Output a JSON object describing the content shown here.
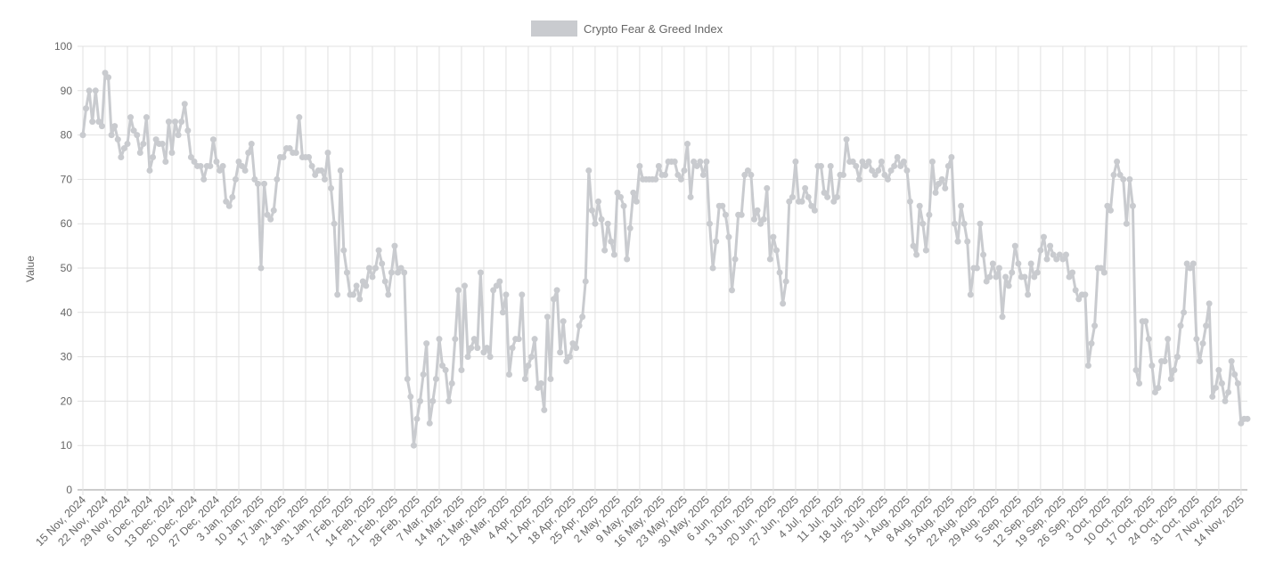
{
  "chart_data": {
    "type": "line",
    "legend": {
      "label": "Crypto Fear & Greed Index",
      "position": "top"
    },
    "ylabel": "Value",
    "xlabel": "",
    "ylim": [
      0,
      100
    ],
    "y_ticks": [
      "0",
      "10",
      "20",
      "30",
      "40",
      "50",
      "60",
      "70",
      "80",
      "90",
      "100"
    ],
    "grid": true,
    "line_color": "#c9cbcf",
    "x_tick_labels": [
      "15 Nov, 2024",
      "22 Nov, 2024",
      "29 Nov, 2024",
      "6 Dec, 2024",
      "13 Dec, 2024",
      "20 Dec, 2024",
      "27 Dec, 2024",
      "3 Jan, 2025",
      "10 Jan, 2025",
      "17 Jan, 2025",
      "24 Jan, 2025",
      "31 Jan, 2025",
      "7 Feb, 2025",
      "14 Feb, 2025",
      "21 Feb, 2025",
      "28 Feb, 2025",
      "7 Mar, 2025",
      "14 Mar, 2025",
      "21 Mar, 2025",
      "28 Mar, 2025",
      "4 Apr, 2025",
      "11 Apr, 2025",
      "18 Apr, 2025",
      "25 Apr, 2025",
      "2 May, 2025",
      "9 May, 2025",
      "16 May, 2025",
      "23 May, 2025",
      "30 May, 2025",
      "6 Jun, 2025",
      "13 Jun, 2025",
      "20 Jun, 2025",
      "27 Jun, 2025",
      "4 Jul, 2025",
      "11 Jul, 2025",
      "18 Jul, 2025",
      "25 Jul, 2025",
      "1 Aug, 2025",
      "8 Aug, 2025",
      "15 Aug, 2025",
      "22 Aug, 2025",
      "29 Aug, 2025",
      "5 Sep, 2025",
      "12 Sep, 2025",
      "19 Sep, 2025",
      "26 Sep, 2025",
      "3 Oct, 2025",
      "10 Oct, 2025",
      "17 Oct, 2025",
      "24 Oct, 2025",
      "31 Oct, 2025",
      "7 Nov, 2025",
      "14 Nov, 2025"
    ],
    "values": [
      80,
      86,
      90,
      83,
      90,
      83,
      82,
      94,
      93,
      80,
      82,
      79,
      75,
      77,
      78,
      84,
      81,
      80,
      76,
      78,
      84,
      72,
      75,
      79,
      78,
      78,
      74,
      83,
      76,
      83,
      80,
      83,
      87,
      81,
      75,
      74,
      73,
      73,
      70,
      73,
      73,
      79,
      74,
      72,
      73,
      65,
      64,
      66,
      70,
      74,
      73,
      72,
      76,
      78,
      70,
      69,
      50,
      69,
      62,
      61,
      63,
      70,
      75,
      75,
      77,
      77,
      76,
      76,
      84,
      75,
      75,
      75,
      73,
      71,
      72,
      72,
      70,
      76,
      68,
      60,
      44,
      72,
      54,
      49,
      44,
      44,
      46,
      43,
      47,
      46,
      50,
      48,
      50,
      54,
      51,
      47,
      44,
      49,
      55,
      49,
      50,
      49,
      25,
      21,
      10,
      16,
      20,
      26,
      33,
      15,
      20,
      25,
      34,
      28,
      27,
      20,
      24,
      34,
      45,
      27,
      46,
      30,
      32,
      34,
      32,
      49,
      31,
      32,
      30,
      45,
      46,
      47,
      40,
      44,
      26,
      32,
      34,
      34,
      44,
      25,
      28,
      30,
      34,
      23,
      24,
      18,
      39,
      25,
      43,
      45,
      31,
      38,
      29,
      30,
      33,
      32,
      37,
      39,
      47,
      72,
      63,
      60,
      65,
      61,
      54,
      60,
      56,
      53,
      67,
      66,
      64,
      52,
      59,
      67,
      65,
      73,
      70,
      70,
      70,
      70,
      70,
      73,
      71,
      71,
      74,
      74,
      74,
      71,
      70,
      72,
      78,
      66,
      74,
      73,
      74,
      71,
      74,
      60,
      50,
      56,
      64,
      64,
      62,
      57,
      45,
      52,
      62,
      62,
      71,
      72,
      71,
      61,
      63,
      60,
      61,
      68,
      52,
      57,
      54,
      49,
      42,
      47,
      65,
      66,
      74,
      65,
      65,
      68,
      66,
      64,
      63,
      73,
      73,
      67,
      66,
      73,
      65,
      66,
      71,
      71,
      79,
      74,
      74,
      73,
      70,
      74,
      73,
      74,
      72,
      71,
      72,
      74,
      71,
      70,
      72,
      73,
      75,
      73,
      74,
      72,
      65,
      55,
      53,
      64,
      60,
      54,
      62,
      74,
      67,
      69,
      70,
      68,
      73,
      75,
      60,
      56,
      64,
      60,
      56,
      44,
      50,
      50,
      60,
      53,
      47,
      48,
      51,
      48,
      50,
      39,
      48,
      46,
      49,
      55,
      51,
      48,
      48,
      44,
      51,
      48,
      49,
      54,
      57,
      52,
      55,
      53,
      52,
      53,
      52,
      53,
      48,
      49,
      45,
      43,
      44,
      44,
      28,
      33,
      37,
      50,
      50,
      49,
      64,
      63,
      71,
      74,
      71,
      70,
      60,
      70,
      64,
      27,
      24,
      38,
      38,
      34,
      28,
      22,
      23,
      29,
      29,
      34,
      25,
      27,
      30,
      37,
      40,
      51,
      50,
      51,
      34,
      29,
      33,
      37,
      42,
      21,
      23,
      27,
      24,
      20,
      22,
      29,
      26,
      24,
      15,
      16,
      16
    ]
  }
}
